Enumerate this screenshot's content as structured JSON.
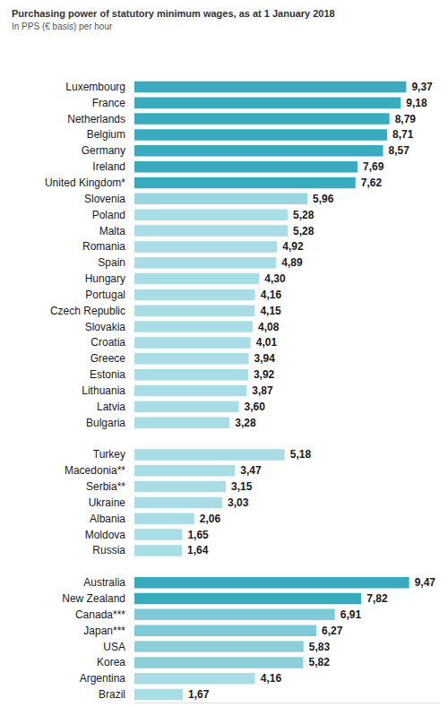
{
  "chart_data": {
    "type": "bar",
    "title": "Purchasing power of statutory minimum wages, as at 1 January 2018",
    "subtitle": "In PPS (€ basis) per hour",
    "orientation": "horizontal",
    "categories": [
      "Luxembourg",
      "France",
      "Netherlands",
      "Belgium",
      "Germany",
      "Ireland",
      "United Kingdom*",
      "Slovenia",
      "Poland",
      "Malta",
      "Romania",
      "Spain",
      "Hungary",
      "Portugal",
      "Czech Republic",
      "Slovakia",
      "Croatia",
      "Greece",
      "Estonia",
      "Lithuania",
      "Latvia",
      "Bulgaria",
      null,
      "Turkey",
      "Macedonia**",
      "Serbia**",
      "Ukraine",
      "Albania",
      "Moldova",
      "Russia",
      null,
      "Australia",
      "New Zealand",
      "Canada***",
      "Japan***",
      "USA",
      "Korea",
      "Argentina",
      "Brazil"
    ],
    "values": [
      9.37,
      9.18,
      8.79,
      8.71,
      8.57,
      7.69,
      7.62,
      5.96,
      5.28,
      5.28,
      4.92,
      4.89,
      4.3,
      4.16,
      4.15,
      4.08,
      4.01,
      3.94,
      3.92,
      3.87,
      3.6,
      3.28,
      null,
      5.18,
      3.47,
      3.15,
      3.03,
      2.06,
      1.65,
      1.64,
      null,
      9.47,
      7.82,
      6.91,
      6.27,
      5.83,
      5.82,
      4.16,
      1.67
    ],
    "value_labels": [
      "9,37",
      "9,18",
      "8,79",
      "8,71",
      "8,57",
      "7,69",
      "7,62",
      "5,96",
      "5,28",
      "5,28",
      "4,92",
      "4,89",
      "4,30",
      "4,16",
      "4,15",
      "4,08",
      "4,01",
      "3,94",
      "3,92",
      "3,87",
      "3,60",
      "3,28",
      null,
      "5,18",
      "3,47",
      "3,15",
      "3,03",
      "2,06",
      "1,65",
      "1,64",
      null,
      "9,47",
      "7,82",
      "6,91",
      "6,27",
      "5,83",
      "5,82",
      "4,16",
      "1,67"
    ],
    "colors": [
      "#3aaabf",
      "#3aaabf",
      "#3aaabf",
      "#3aaabf",
      "#3aaabf",
      "#3aaabf",
      "#3aaabf",
      "#9ad6e0",
      "#a9dde6",
      "#a9dde6",
      "#a9dde6",
      "#a9dde6",
      "#a9dde6",
      "#a9dde6",
      "#a9dde6",
      "#a9dde6",
      "#a9dde6",
      "#a9dde6",
      "#a9dde6",
      "#a9dde6",
      "#a9dde6",
      "#a9dde6",
      null,
      "#a9dde6",
      "#a9dde6",
      "#a9dde6",
      "#a9dde6",
      "#a9dde6",
      "#a9dde6",
      "#a9dde6",
      null,
      "#3aaabf",
      "#3aaabf",
      "#7fcad7",
      "#7fcad7",
      "#8ccfdb",
      "#8ccfdb",
      "#a9dde6",
      "#a9dde6"
    ],
    "xlim": [
      0,
      10.5
    ],
    "grid": false,
    "data_labels": true,
    "tick_labels": "y"
  }
}
